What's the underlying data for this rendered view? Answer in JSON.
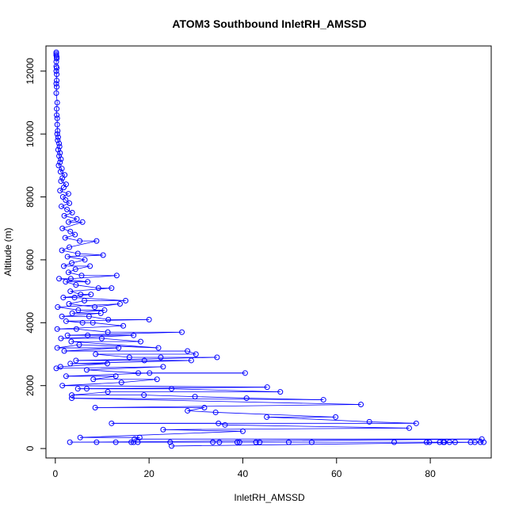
{
  "chart_data": {
    "type": "scatter",
    "title": "ATOM3 Southbound InletRH_AMSSD",
    "xlabel": "InletRH_AMSSD",
    "ylabel": "Altitude (m)",
    "xlim": [
      -2,
      93
    ],
    "ylim": [
      -300,
      12800
    ],
    "x_ticks": [
      0,
      20,
      40,
      60,
      80
    ],
    "y_ticks": [
      0,
      2000,
      4000,
      6000,
      8000,
      10000,
      12000
    ],
    "grid": false,
    "legend": "none",
    "colors": {
      "series": "#0000ff",
      "axis": "#000000"
    },
    "series": [
      {
        "points": [
          [
            0.2,
            12600
          ],
          [
            0.2,
            12550
          ],
          [
            0.2,
            12500
          ],
          [
            0.3,
            12450
          ],
          [
            0.3,
            12400
          ],
          [
            0.2,
            12300
          ],
          [
            0.2,
            12150
          ],
          [
            0.3,
            12100
          ],
          [
            0.2,
            12000
          ],
          [
            0.3,
            11900
          ],
          [
            0.3,
            11700
          ],
          [
            0.2,
            11600
          ],
          [
            0.3,
            11500
          ],
          [
            0.2,
            11300
          ],
          [
            0.4,
            11000
          ],
          [
            0.3,
            10800
          ],
          [
            0.3,
            10600
          ],
          [
            0.4,
            10500
          ],
          [
            0.4,
            10300
          ],
          [
            0.5,
            10100
          ],
          [
            0.4,
            10000
          ],
          [
            0.6,
            9900
          ],
          [
            0.5,
            9800
          ],
          [
            0.8,
            9700
          ],
          [
            0.9,
            9600
          ],
          [
            0.6,
            9500
          ],
          [
            1.0,
            9400
          ],
          [
            0.8,
            9300
          ],
          [
            1.2,
            9200
          ],
          [
            1.0,
            9100
          ],
          [
            0.7,
            9000
          ],
          [
            1.4,
            8900
          ],
          [
            1.1,
            8800
          ],
          [
            2.0,
            8700
          ],
          [
            1.5,
            8600
          ],
          [
            1.2,
            8500
          ],
          [
            2.3,
            8400
          ],
          [
            1.8,
            8300
          ],
          [
            1.0,
            8200
          ],
          [
            2.8,
            8100
          ],
          [
            1.6,
            8000
          ],
          [
            2.2,
            7900
          ],
          [
            3.0,
            7800
          ],
          [
            1.3,
            7700
          ],
          [
            2.5,
            7600
          ],
          [
            3.6,
            7500
          ],
          [
            1.9,
            7400
          ],
          [
            4.6,
            7300
          ],
          [
            2.8,
            7200
          ],
          [
            5.8,
            7200
          ],
          [
            1.5,
            7000
          ],
          [
            3.2,
            6900
          ],
          [
            4.2,
            6800
          ],
          [
            2.1,
            6700
          ],
          [
            5.2,
            6600
          ],
          [
            8.8,
            6600
          ],
          [
            3.0,
            6400
          ],
          [
            1.4,
            6300
          ],
          [
            4.8,
            6200
          ],
          [
            10.2,
            6150
          ],
          [
            2.6,
            6100
          ],
          [
            6.3,
            6000
          ],
          [
            3.5,
            5900
          ],
          [
            1.8,
            5800
          ],
          [
            7.4,
            5800
          ],
          [
            4.3,
            5700
          ],
          [
            2.8,
            5600
          ],
          [
            5.6,
            5500
          ],
          [
            13.1,
            5500
          ],
          [
            3.3,
            5400
          ],
          [
            0.8,
            5400
          ],
          [
            6.9,
            5300
          ],
          [
            2.2,
            5300
          ],
          [
            4.4,
            5200
          ],
          [
            9.2,
            5100
          ],
          [
            12.0,
            5100
          ],
          [
            3.2,
            5000
          ],
          [
            5.4,
            4900
          ],
          [
            7.6,
            4900
          ],
          [
            1.7,
            4800
          ],
          [
            4.1,
            4800
          ],
          [
            15.0,
            4700
          ],
          [
            6.2,
            4700
          ],
          [
            2.9,
            4600
          ],
          [
            8.4,
            4500
          ],
          [
            13.8,
            4600
          ],
          [
            0.5,
            4500
          ],
          [
            4.9,
            4400
          ],
          [
            10.5,
            4400
          ],
          [
            3.6,
            4300
          ],
          [
            9.7,
            4300
          ],
          [
            1.4,
            4200
          ],
          [
            7.2,
            4200
          ],
          [
            11.3,
            4100
          ],
          [
            20.0,
            4100
          ],
          [
            2.3,
            4050
          ],
          [
            5.8,
            4000
          ],
          [
            8.0,
            4000
          ],
          [
            14.5,
            3900
          ],
          [
            0.4,
            3800
          ],
          [
            4.5,
            3800
          ],
          [
            11.2,
            3700
          ],
          [
            27.0,
            3700
          ],
          [
            2.6,
            3600
          ],
          [
            6.9,
            3600
          ],
          [
            16.7,
            3600
          ],
          [
            1.2,
            3500
          ],
          [
            9.9,
            3500
          ],
          [
            18.2,
            3400
          ],
          [
            3.4,
            3400
          ],
          [
            22.0,
            3200
          ],
          [
            5.1,
            3300
          ],
          [
            0.4,
            3200
          ],
          [
            13.5,
            3200
          ],
          [
            1.9,
            3100
          ],
          [
            28.2,
            3100
          ],
          [
            30.0,
            3000
          ],
          [
            8.6,
            3000
          ],
          [
            15.8,
            2900
          ],
          [
            22.5,
            2900
          ],
          [
            34.5,
            2900
          ],
          [
            4.4,
            2800
          ],
          [
            19.0,
            2800
          ],
          [
            29.0,
            2800
          ],
          [
            3.2,
            2700
          ],
          [
            11.1,
            2700
          ],
          [
            1.1,
            2600
          ],
          [
            0.2,
            2550
          ],
          [
            23.0,
            2600
          ],
          [
            6.7,
            2500
          ],
          [
            17.7,
            2400
          ],
          [
            40.5,
            2400
          ],
          [
            20.1,
            2400
          ],
          [
            2.3,
            2300
          ],
          [
            12.9,
            2300
          ],
          [
            8.1,
            2200
          ],
          [
            21.7,
            2200
          ],
          [
            14.1,
            2100
          ],
          [
            1.5,
            2000
          ],
          [
            45.2,
            1950
          ],
          [
            4.8,
            1900
          ],
          [
            6.7,
            1900
          ],
          [
            24.8,
            1900
          ],
          [
            48.0,
            1800
          ],
          [
            11.2,
            1800
          ],
          [
            3.5,
            1700
          ],
          [
            18.9,
            1700
          ],
          [
            29.8,
            1650
          ],
          [
            40.8,
            1600
          ],
          [
            57.2,
            1550
          ],
          [
            3.5,
            1600
          ],
          [
            65.2,
            1400
          ],
          [
            8.5,
            1300
          ],
          [
            31.8,
            1300
          ],
          [
            28.2,
            1200
          ],
          [
            34.2,
            1150
          ],
          [
            59.8,
            1000
          ],
          [
            45.1,
            1000
          ],
          [
            67.0,
            850
          ],
          [
            77.0,
            800
          ],
          [
            12.0,
            800
          ],
          [
            34.8,
            800
          ],
          [
            36.2,
            750
          ],
          [
            75.5,
            650
          ],
          [
            23.0,
            600
          ],
          [
            40.0,
            550
          ],
          [
            5.3,
            350
          ],
          [
            18.0,
            350
          ],
          [
            16.9,
            300
          ],
          [
            91.0,
            300
          ],
          [
            3.1,
            200
          ],
          [
            8.8,
            200
          ],
          [
            12.9,
            200
          ],
          [
            16.2,
            200
          ],
          [
            16.7,
            200
          ],
          [
            17.6,
            200
          ],
          [
            24.5,
            200
          ],
          [
            33.6,
            200
          ],
          [
            35.0,
            200
          ],
          [
            38.8,
            200
          ],
          [
            39.3,
            200
          ],
          [
            42.8,
            200
          ],
          [
            43.6,
            200
          ],
          [
            49.8,
            200
          ],
          [
            54.7,
            200
          ],
          [
            72.3,
            200
          ],
          [
            79.2,
            200
          ],
          [
            79.8,
            200
          ],
          [
            82.0,
            200
          ],
          [
            82.8,
            200
          ],
          [
            83.0,
            200
          ],
          [
            84.1,
            200
          ],
          [
            85.3,
            200
          ],
          [
            88.6,
            200
          ],
          [
            89.5,
            200
          ],
          [
            90.7,
            200
          ],
          [
            91.4,
            200
          ],
          [
            24.8,
            80
          ]
        ]
      }
    ]
  }
}
